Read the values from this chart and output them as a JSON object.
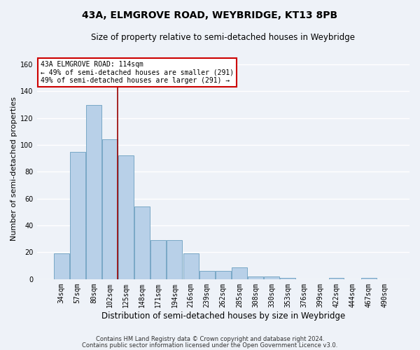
{
  "title": "43A, ELMGROVE ROAD, WEYBRIDGE, KT13 8PB",
  "subtitle": "Size of property relative to semi-detached houses in Weybridge",
  "xlabel": "Distribution of semi-detached houses by size in Weybridge",
  "ylabel": "Number of semi-detached properties",
  "bin_labels": [
    "34sqm",
    "57sqm",
    "80sqm",
    "102sqm",
    "125sqm",
    "148sqm",
    "171sqm",
    "194sqm",
    "216sqm",
    "239sqm",
    "262sqm",
    "285sqm",
    "308sqm",
    "330sqm",
    "353sqm",
    "376sqm",
    "399sqm",
    "422sqm",
    "444sqm",
    "467sqm",
    "490sqm"
  ],
  "bar_heights": [
    19,
    95,
    130,
    104,
    92,
    54,
    29,
    29,
    19,
    6,
    6,
    9,
    2,
    2,
    1,
    0,
    0,
    1,
    0,
    1,
    0
  ],
  "bar_color": "#b8d0e8",
  "bar_edge_color": "#6a9fc0",
  "background_color": "#eef2f8",
  "grid_color": "#ffffff",
  "vline_color": "#990000",
  "vline_x": 3.48,
  "annotation_text": "43A ELMGROVE ROAD: 114sqm\n← 49% of semi-detached houses are smaller (291)\n49% of semi-detached houses are larger (291) →",
  "annotation_box_color": "#ffffff",
  "annotation_box_edge": "#cc0000",
  "footer_line1": "Contains HM Land Registry data © Crown copyright and database right 2024.",
  "footer_line2": "Contains public sector information licensed under the Open Government Licence v3.0.",
  "ylim": [
    0,
    165
  ],
  "yticks": [
    0,
    20,
    40,
    60,
    80,
    100,
    120,
    140,
    160
  ],
  "title_fontsize": 10,
  "subtitle_fontsize": 8.5,
  "ylabel_fontsize": 8,
  "xlabel_fontsize": 8.5,
  "tick_fontsize": 7,
  "annotation_fontsize": 7,
  "footer_fontsize": 6
}
